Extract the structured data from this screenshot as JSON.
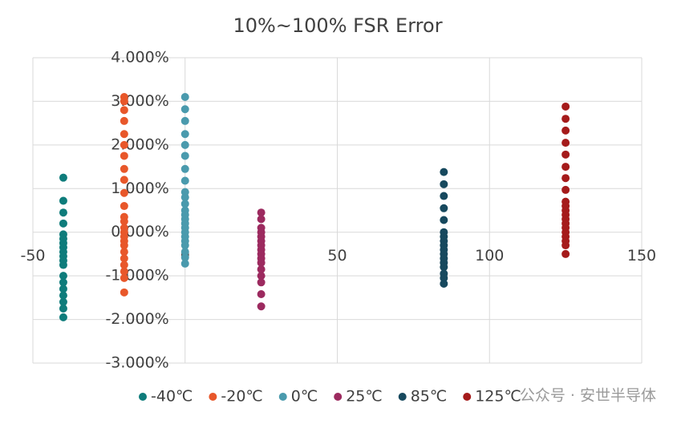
{
  "chart_data": {
    "type": "scatter",
    "title": "10%~100% FSR Error",
    "xlim": [
      -50,
      150
    ],
    "xticks": [
      -50,
      0,
      50,
      100,
      150
    ],
    "ylim": [
      -3,
      4
    ],
    "yticks": [
      {
        "value": -3,
        "label": "-3.000%"
      },
      {
        "value": -2,
        "label": "-2.000%"
      },
      {
        "value": -1,
        "label": "-1.000%"
      },
      {
        "value": 0,
        "label": "0.000%"
      },
      {
        "value": 1,
        "label": "1.000%"
      },
      {
        "value": 2,
        "label": "2.000%"
      },
      {
        "value": 3,
        "label": "3.000%"
      },
      {
        "value": 4,
        "label": "4.000%"
      }
    ],
    "grid": true,
    "legend": "bottom",
    "watermark": "公众号 · 安世半导体",
    "series": [
      {
        "name": "-40℃",
        "color": "#0e7c7b",
        "x": [
          -40,
          -40,
          -40,
          -40,
          -40,
          -40,
          -40,
          -40,
          -40,
          -40,
          -40,
          -40,
          -40,
          -40,
          -40,
          -40,
          -40,
          -40,
          -40
        ],
        "values": [
          1.25,
          0.72,
          0.45,
          0.2,
          -0.05,
          -0.15,
          -0.25,
          -0.35,
          -0.45,
          -0.55,
          -0.65,
          -0.75,
          -1.0,
          -1.15,
          -1.3,
          -1.45,
          -1.6,
          -1.75,
          -1.95
        ]
      },
      {
        "name": "-20℃",
        "color": "#e8572a",
        "x": [
          -20,
          -20,
          -20,
          -20,
          -20,
          -20,
          -20,
          -20,
          -20,
          -20,
          -20,
          -20,
          -20,
          -20,
          -20,
          -20,
          -20,
          -20,
          -20,
          -20,
          -20,
          -20,
          -20,
          -20
        ],
        "values": [
          3.1,
          3.0,
          2.8,
          2.55,
          2.25,
          2.0,
          1.75,
          1.45,
          1.2,
          0.9,
          0.6,
          0.35,
          0.25,
          0.1,
          0.0,
          -0.1,
          -0.2,
          -0.3,
          -0.45,
          -0.6,
          -0.75,
          -0.9,
          -1.05,
          -1.38
        ]
      },
      {
        "name": "0℃",
        "color": "#4a9aad",
        "x": [
          0,
          0,
          0,
          0,
          0,
          0,
          0,
          0,
          0,
          0,
          0,
          0,
          0,
          0,
          0,
          0,
          0,
          0,
          0,
          0,
          0,
          0,
          0
        ],
        "values": [
          3.1,
          2.82,
          2.55,
          2.25,
          2.0,
          1.75,
          1.45,
          1.18,
          0.92,
          0.8,
          0.65,
          0.5,
          0.4,
          0.3,
          0.2,
          0.1,
          0.0,
          -0.1,
          -0.2,
          -0.3,
          -0.45,
          -0.58,
          -0.72
        ]
      },
      {
        "name": "25℃",
        "color": "#9c2a5f",
        "x": [
          25,
          25,
          25,
          25,
          25,
          25,
          25,
          25,
          25,
          25,
          25,
          25,
          25,
          25,
          25,
          25
        ],
        "values": [
          0.45,
          0.3,
          0.1,
          0.0,
          -0.1,
          -0.2,
          -0.3,
          -0.4,
          -0.5,
          -0.6,
          -0.7,
          -0.85,
          -1.0,
          -1.15,
          -1.42,
          -1.7
        ]
      },
      {
        "name": "85℃",
        "color": "#17495e",
        "x": [
          85,
          85,
          85,
          85,
          85,
          85,
          85,
          85,
          85,
          85,
          85,
          85,
          85,
          85,
          85,
          85,
          85
        ],
        "values": [
          1.38,
          1.1,
          0.83,
          0.55,
          0.28,
          0.0,
          -0.1,
          -0.2,
          -0.3,
          -0.4,
          -0.5,
          -0.6,
          -0.7,
          -0.8,
          -0.95,
          -1.05,
          -1.18
        ]
      },
      {
        "name": "125℃",
        "color": "#a51b1b",
        "x": [
          125,
          125,
          125,
          125,
          125,
          125,
          125,
          125,
          125,
          125,
          125,
          125,
          125,
          125,
          125,
          125,
          125,
          125,
          125,
          125
        ],
        "values": [
          2.88,
          2.6,
          2.33,
          2.05,
          1.78,
          1.5,
          1.24,
          0.97,
          0.7,
          0.6,
          0.5,
          0.4,
          0.3,
          0.2,
          0.1,
          0.0,
          -0.1,
          -0.2,
          -0.3,
          -0.5
        ]
      }
    ]
  }
}
